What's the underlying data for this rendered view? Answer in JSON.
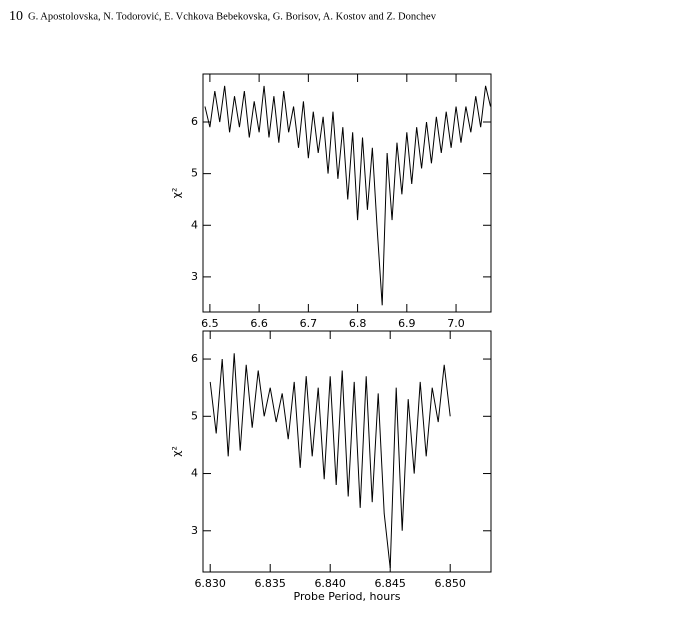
{
  "header": {
    "page": "10",
    "authors": "G. Apostolovska, N. Todorović, E. Vchkova Bebekovska, G. Borisov, A. Kostov and Z. Donchev"
  },
  "chart_data": [
    {
      "type": "line",
      "ylabel": "χ²",
      "xlim": [
        6.486,
        7.071
      ],
      "ylim": [
        2.32,
        6.93
      ],
      "xticks": [
        6.5,
        6.6,
        6.7,
        6.8,
        6.9,
        {
          "value": 7,
          "label": "7.0"
        }
      ],
      "yticks": [
        3,
        4,
        5,
        6
      ],
      "series": [
        {
          "color": "#000000",
          "x": [
            6.49,
            6.5,
            6.51,
            6.52,
            6.53,
            6.54,
            6.55,
            6.56,
            6.57,
            6.58,
            6.59,
            6.6,
            6.61,
            6.62,
            6.63,
            6.64,
            6.65,
            6.66,
            6.67,
            6.68,
            6.69,
            6.7,
            6.71,
            6.72,
            6.73,
            6.74,
            6.75,
            6.76,
            6.77,
            6.78,
            6.79,
            6.8,
            6.81,
            6.82,
            6.83,
            6.84,
            6.85,
            6.86,
            6.87,
            6.88,
            6.89,
            6.9,
            6.91,
            6.92,
            6.93,
            6.94,
            6.95,
            6.96,
            6.97,
            6.98,
            6.99,
            7.0,
            7.01,
            7.02,
            7.03,
            7.04,
            7.05,
            7.06,
            7.07
          ],
          "values": [
            6.3,
            5.9,
            6.6,
            6.0,
            6.7,
            5.8,
            6.5,
            5.9,
            6.6,
            5.7,
            6.4,
            5.8,
            6.7,
            5.7,
            6.5,
            5.6,
            6.6,
            5.8,
            6.3,
            5.5,
            6.4,
            5.3,
            6.2,
            5.4,
            6.1,
            5.0,
            6.2,
            4.9,
            5.9,
            4.5,
            5.8,
            4.1,
            5.7,
            4.3,
            5.5,
            3.9,
            2.45,
            5.4,
            4.1,
            5.6,
            4.6,
            5.8,
            4.8,
            5.9,
            5.1,
            6.0,
            5.2,
            6.1,
            5.4,
            6.2,
            5.5,
            6.3,
            5.6,
            6.3,
            5.8,
            6.5,
            5.9,
            6.7,
            6.3
          ]
        }
      ]
    },
    {
      "type": "line",
      "ylabel": "χ²",
      "xlabel": "Probe Period, hours",
      "xlim": [
        6.8294,
        6.8534
      ],
      "ylim": [
        2.28,
        6.49
      ],
      "xticks": [
        {
          "value": 6.83,
          "label": "6.830"
        },
        6.835,
        {
          "value": 6.84,
          "label": "6.840"
        },
        6.845,
        {
          "value": 6.85,
          "label": "6.850"
        }
      ],
      "yticks": [
        3,
        4,
        5,
        6
      ],
      "series": [
        {
          "color": "#000000",
          "x": [
            6.83,
            6.8305,
            6.831,
            6.8315,
            6.832,
            6.8325,
            6.833,
            6.8335,
            6.834,
            6.8345,
            6.835,
            6.8355,
            6.836,
            6.8365,
            6.837,
            6.8375,
            6.838,
            6.8385,
            6.839,
            6.8395,
            6.84,
            6.8405,
            6.841,
            6.8415,
            6.842,
            6.8425,
            6.843,
            6.8435,
            6.844,
            6.8445,
            6.845,
            6.8455,
            6.846,
            6.8465,
            6.847,
            6.8475,
            6.848,
            6.8485,
            6.849,
            6.8495,
            6.85
          ],
          "values": [
            5.6,
            4.7,
            6.0,
            4.3,
            6.1,
            4.4,
            5.9,
            4.8,
            5.8,
            5.0,
            5.5,
            4.9,
            5.4,
            4.6,
            5.6,
            4.1,
            5.7,
            4.3,
            5.5,
            3.9,
            5.7,
            3.8,
            5.8,
            3.6,
            5.6,
            3.4,
            5.7,
            3.5,
            5.4,
            3.3,
            2.35,
            5.5,
            3.0,
            5.3,
            4.0,
            5.6,
            4.3,
            5.5,
            4.9,
            5.9,
            5.0
          ]
        }
      ]
    }
  ]
}
